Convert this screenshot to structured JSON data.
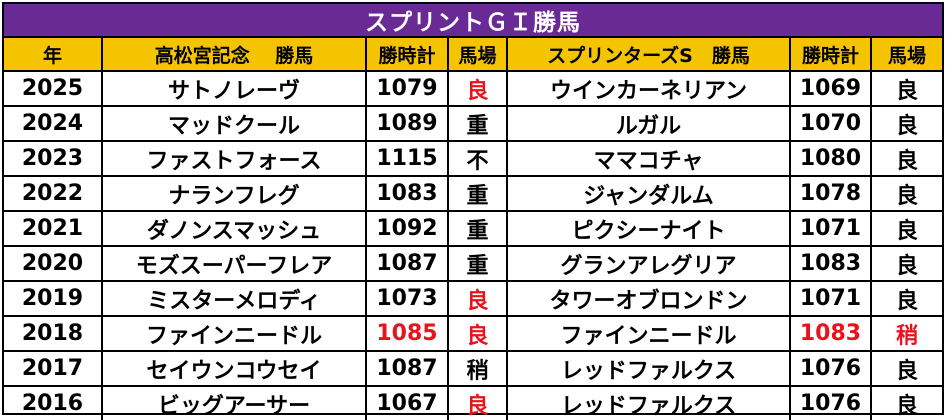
{
  "title": "スプリントＧＩ勝馬",
  "headers": [
    "年",
    "高松宮記念　 勝馬",
    "勝時計",
    "馬場",
    "スプリンターズS　勝馬",
    "勝時計",
    "馬場"
  ],
  "rows": [
    {
      "year": "2025",
      "tw": "サトノレーヴ",
      "tt": "1079",
      "tg": "良",
      "sw": "ウインカーネリアン",
      "st": "1069",
      "sg": "良",
      "red": [
        "tg"
      ]
    },
    {
      "year": "2024",
      "tw": "マッドクール",
      "tt": "1089",
      "tg": "重",
      "sw": "ルガル",
      "st": "1070",
      "sg": "良",
      "red": []
    },
    {
      "year": "2023",
      "tw": "ファストフォース",
      "tt": "1115",
      "tg": "不",
      "sw": "ママコチャ",
      "st": "1080",
      "sg": "良",
      "red": []
    },
    {
      "year": "2022",
      "tw": "ナランフレグ",
      "tt": "1083",
      "tg": "重",
      "sw": "ジャンダルム",
      "st": "1078",
      "sg": "良",
      "red": []
    },
    {
      "year": "2021",
      "tw": "ダノンスマッシュ",
      "tt": "1092",
      "tg": "重",
      "sw": "ピクシーナイト",
      "st": "1071",
      "sg": "良",
      "red": []
    },
    {
      "year": "2020",
      "tw": "モズスーパーフレア",
      "tt": "1087",
      "tg": "重",
      "sw": "グランアレグリア",
      "st": "1083",
      "sg": "良",
      "red": []
    },
    {
      "year": "2019",
      "tw": "ミスターメロディ",
      "tt": "1073",
      "tg": "良",
      "sw": "タワーオブロンドン",
      "st": "1071",
      "sg": "良",
      "red": [
        "tg"
      ]
    },
    {
      "year": "2018",
      "tw": "ファインニードル",
      "tt": "1085",
      "tg": "良",
      "sw": "ファインニードル",
      "st": "1083",
      "sg": "稍",
      "red": [
        "tt",
        "tg",
        "st",
        "sg"
      ]
    },
    {
      "year": "2017",
      "tw": "セイウンコウセイ",
      "tt": "1087",
      "tg": "稍",
      "sw": "レッドファルクス",
      "st": "1076",
      "sg": "良",
      "red": []
    },
    {
      "year": "2016",
      "tw": "ビッグアーサー",
      "tt": "1067",
      "tg": "良",
      "sw": "レッドファルクス",
      "st": "1076",
      "sg": "良",
      "red": [
        "tg"
      ]
    }
  ],
  "colors": {
    "title_bg": "#6a2a96",
    "header_bg": "#f4c400",
    "highlight": "#e8131b"
  }
}
